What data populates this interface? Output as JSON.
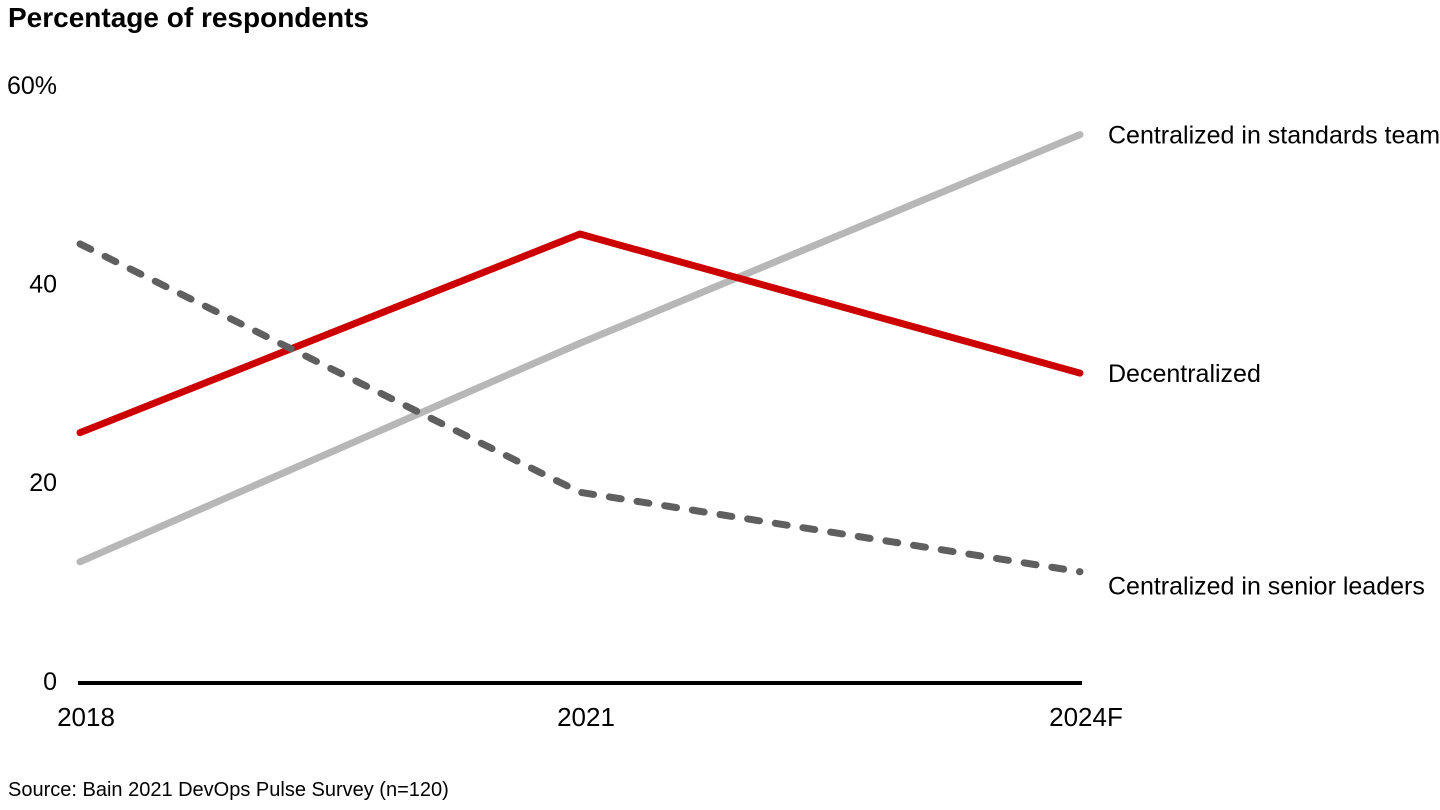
{
  "page": {
    "background_color": "#ffffff"
  },
  "chart_data": {
    "type": "line",
    "title": "Percentage of respondents",
    "categories": [
      "2018",
      "2021",
      "2024F"
    ],
    "series": [
      {
        "name": "Centralized in standards team",
        "values": [
          12,
          34,
          55
        ],
        "color": "#b7b7b7",
        "line_style": "solid"
      },
      {
        "name": "Decentralized",
        "values": [
          25,
          45,
          31
        ],
        "color": "#cc0000",
        "line_style": "solid"
      },
      {
        "name": "Centralized in senior leaders",
        "values": [
          44,
          19,
          11
        ],
        "color": "#5f5f5f",
        "line_style": "dashed"
      }
    ],
    "xlabel": "",
    "ylabel": "",
    "ylim": [
      0,
      60
    ],
    "yticks": [
      {
        "value": 0,
        "label": "0"
      },
      {
        "value": 20,
        "label": "20"
      },
      {
        "value": 40,
        "label": "40"
      },
      {
        "value": 60,
        "label": "60%"
      }
    ],
    "grid": false,
    "legend_position": "right-of-line-ends",
    "axis_color": "#000000"
  },
  "source": {
    "text": "Source: Bain 2021 DevOps Pulse Survey (n=120)"
  }
}
